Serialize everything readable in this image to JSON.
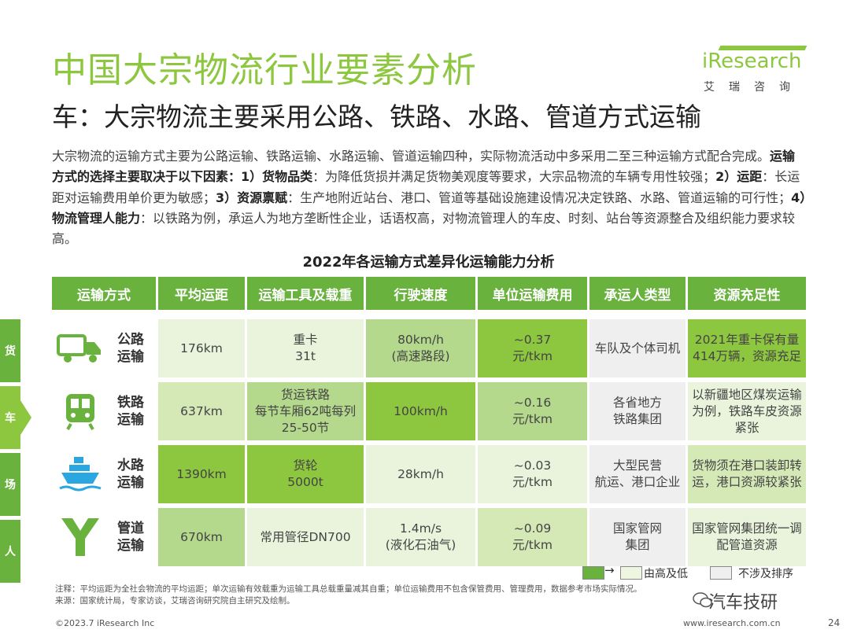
{
  "header": {
    "title": "中国大宗物流行业要素分析",
    "subtitle": "车：大宗物流主要采用公路、铁路、水路、管道方式运输"
  },
  "logo": {
    "brand": "iResearch",
    "cn": "艾瑞咨询"
  },
  "intro": {
    "p1": "大宗物流的运输方式主要为公路运输、铁路运输、水路运输、管道运输四种，实际物流活动中多采用二至三种运输方式配合完成。",
    "b1": "运输方式的选择主要取决于以下因素：1）货物品类",
    "p2": "：为降低货损并满足货物美观度等要求，大宗品物流的车辆专用性较强；",
    "b2": "2）运距",
    "p3": "：长运距对运输费用单价更为敏感；",
    "b3": "3）资源禀赋",
    "p4": "：生产地附近站台、港口、管道等基础设施建设情况决定铁路、水路、管道运输的可行性；",
    "b4": "4）物流管理人能力",
    "p5": "：以铁路为例，承运人为地方垄断性企业，话语权高，对物流管理人的车皮、时刻、站台等资源整合及组织能力要求较高。"
  },
  "table": {
    "title": "2022年各运输方式差异化运输能力分析",
    "headers": [
      "运输方式",
      "平均运距",
      "运输工具及载重",
      "行驶速度",
      "单位运输费用",
      "承运人类型",
      "资源充足性"
    ],
    "rows": [
      {
        "mode_line1": "公路",
        "mode_line2": "运输",
        "icon": "truck-icon",
        "distance": "176km",
        "vehicle_l1": "重卡",
        "vehicle_l2": "31t",
        "vehicle_l3": "",
        "speed_l1": "80km/h",
        "speed_l2": "(高速路段)",
        "cost_l1": "~0.37",
        "cost_l2": "元/tkm",
        "carrier_l1": "车队及个体司机",
        "carrier_l2": "",
        "resource_l1": "2021年重卡保有量",
        "resource_l2": "414万辆，资源充足",
        "resource_l3": ""
      },
      {
        "mode_line1": "铁路",
        "mode_line2": "运输",
        "icon": "train-icon",
        "distance": "637km",
        "vehicle_l1": "货运铁路",
        "vehicle_l2": "每节车厢62吨每列",
        "vehicle_l3": "25-50节",
        "speed_l1": "100km/h",
        "speed_l2": "",
        "cost_l1": "~0.16",
        "cost_l2": "元/tkm",
        "carrier_l1": "各省地方",
        "carrier_l2": "铁路集团",
        "resource_l1": "以新疆地区煤炭运输",
        "resource_l2": "为例，铁路车皮资源",
        "resource_l3": "紧张"
      },
      {
        "mode_line1": "水路",
        "mode_line2": "运输",
        "icon": "ship-icon",
        "distance": "1390km",
        "vehicle_l1": "货轮",
        "vehicle_l2": "5000t",
        "vehicle_l3": "",
        "speed_l1": "28km/h",
        "speed_l2": "",
        "cost_l1": "~0.03",
        "cost_l2": "元/tkm",
        "carrier_l1": "大型民营",
        "carrier_l2": "航运、港口企业",
        "resource_l1": "货物须在港口装卸转",
        "resource_l2": "运，港口资源较紧张",
        "resource_l3": ""
      },
      {
        "mode_line1": "管道",
        "mode_line2": "运输",
        "icon": "pipeline-icon",
        "distance": "670km",
        "vehicle_l1": "常用管径DN700",
        "vehicle_l2": "",
        "vehicle_l3": "",
        "speed_l1": "1.4m/s",
        "speed_l2": "(液化石油气)",
        "cost_l1": "~0.09",
        "cost_l2": "元/tkm",
        "carrier_l1": "国家管网",
        "carrier_l2": "集团",
        "resource_l1": "国家管网集团统一调",
        "resource_l2": "配管道资源",
        "resource_l3": ""
      }
    ]
  },
  "side_tabs": [
    "货",
    "车",
    "场",
    "人"
  ],
  "legend": {
    "arrow": "→",
    "gradient_label": "由高及低",
    "neutral_label": "不涉及排序"
  },
  "notes": {
    "note": "注释：平均运距为全社会物流的平均运距；单次运输有效载重为运输工具总载重量减其自重；单位运输费用不包含保管费用、管理费用，数据参考市场实际情况。",
    "source": "来源：国家统计局，专家访谈，艾瑞咨询研究院自主研究及绘制。"
  },
  "footer": {
    "copyright": "©2023.7 iResearch Inc",
    "url": "www.iresearch.com.cn",
    "page": "24",
    "watermark": "汽车技研"
  },
  "colors": {
    "brand_green": "#8dc63f",
    "header_green": "#6ab23e"
  }
}
